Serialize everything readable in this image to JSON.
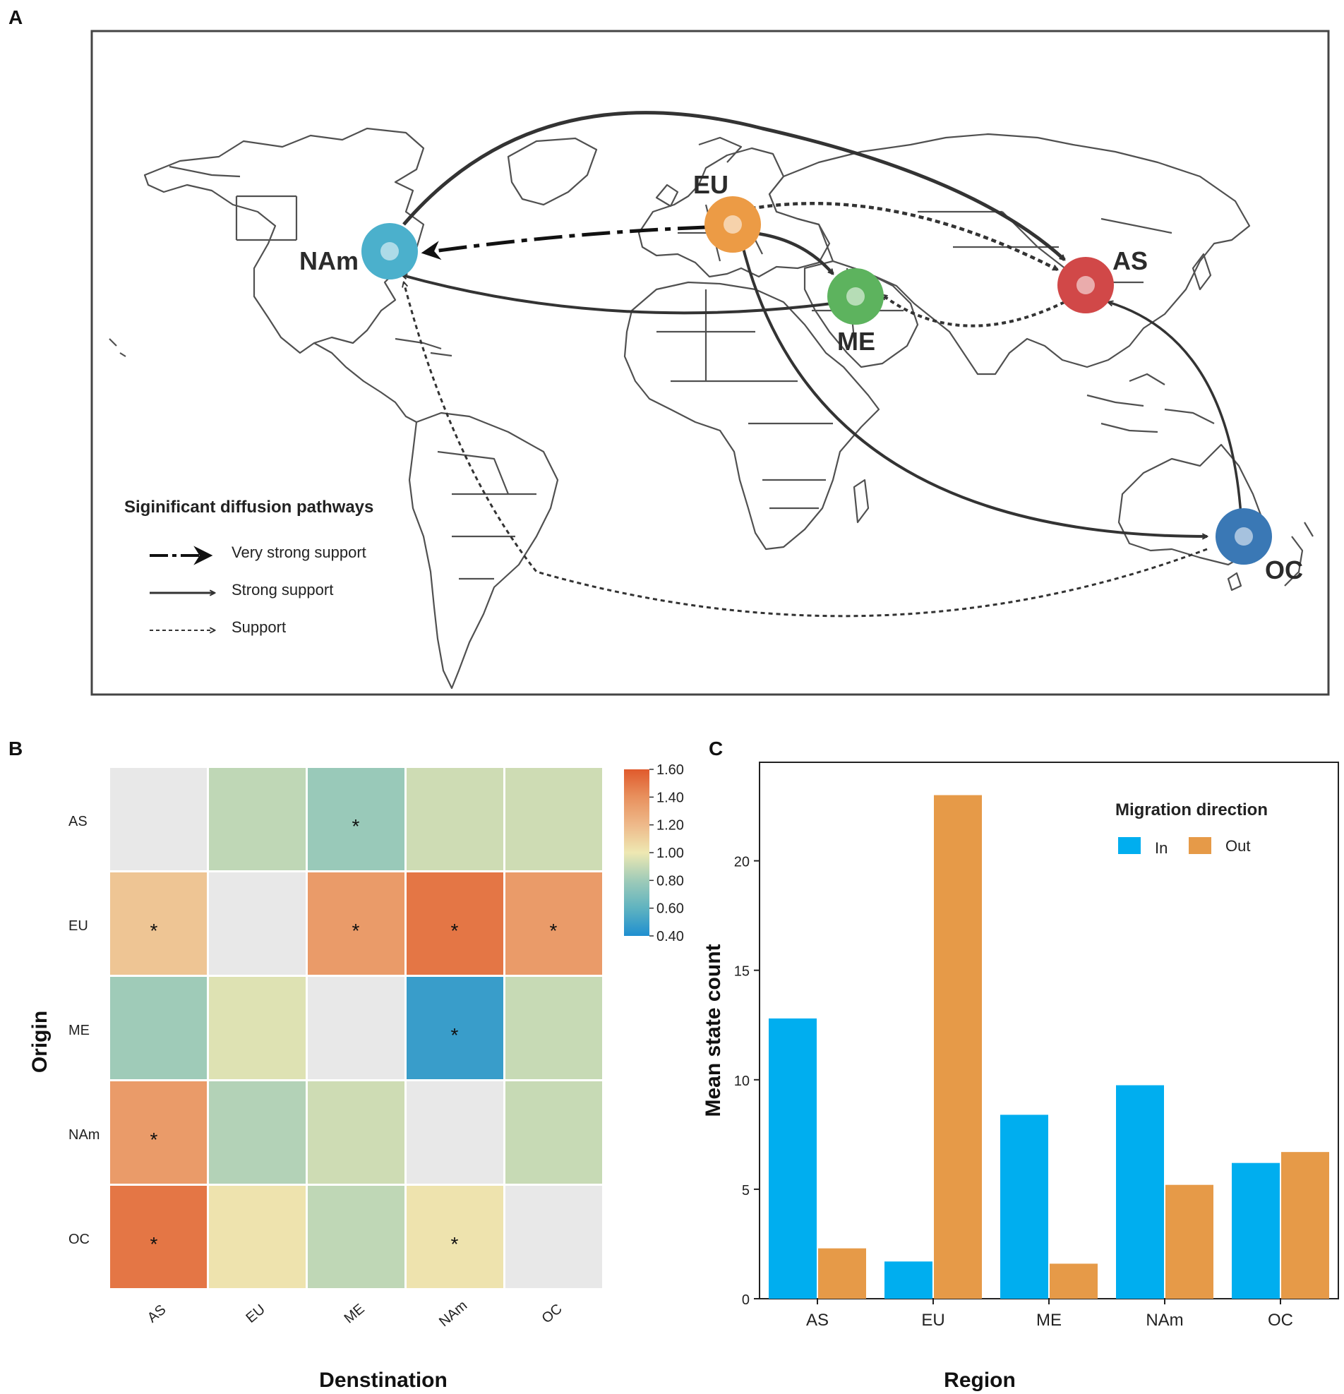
{
  "panels": {
    "a_label": "A",
    "b_label": "B",
    "c_label": "C"
  },
  "map": {
    "nodes": [
      {
        "id": "NAm",
        "label": "NAm",
        "color": "#4bb0cc"
      },
      {
        "id": "EU",
        "label": "EU",
        "color": "#ec9b45"
      },
      {
        "id": "ME",
        "label": "ME",
        "color": "#5db35e"
      },
      {
        "id": "AS",
        "label": "AS",
        "color": "#d14848"
      },
      {
        "id": "OC",
        "label": "OC",
        "color": "#3a78b5"
      }
    ],
    "pathways": [
      {
        "from": "EU",
        "to": "NAm",
        "support": "Very strong support"
      },
      {
        "from": "NAm",
        "to": "AS",
        "support": "Strong support"
      },
      {
        "from": "EU",
        "to": "ME",
        "support": "Strong support"
      },
      {
        "from": "ME",
        "to": "NAm",
        "support": "Strong support"
      },
      {
        "from": "EU",
        "to": "OC",
        "support": "Strong support"
      },
      {
        "from": "OC",
        "to": "AS",
        "support": "Strong support"
      },
      {
        "from": "EU",
        "to": "AS",
        "support": "Support"
      },
      {
        "from": "AS",
        "to": "ME",
        "support": "Support"
      },
      {
        "from": "OC",
        "to": "NAm",
        "support": "Support"
      }
    ],
    "legend": {
      "title": "Siginificant diffusion pathways",
      "items": [
        "Very strong support",
        "Strong support",
        "Support"
      ]
    }
  },
  "chart_data": [
    {
      "type": "heatmap",
      "title": "",
      "xlabel": "Denstination",
      "ylabel": "Origin",
      "x_categories": [
        "AS",
        "EU",
        "ME",
        "NAm",
        "OC"
      ],
      "y_categories": [
        "AS",
        "EU",
        "ME",
        "NAm",
        "OC"
      ],
      "values": [
        [
          null,
          0.88,
          0.78,
          0.92,
          0.92
        ],
        [
          1.15,
          null,
          1.35,
          1.5,
          1.35
        ],
        [
          0.8,
          0.96,
          null,
          0.48,
          0.9
        ],
        [
          1.35,
          0.85,
          0.92,
          null,
          0.9
        ],
        [
          1.5,
          1.02,
          0.88,
          1.02,
          null
        ]
      ],
      "significant": [
        [
          false,
          false,
          true,
          false,
          false
        ],
        [
          true,
          false,
          true,
          true,
          true
        ],
        [
          false,
          false,
          false,
          true,
          false
        ],
        [
          true,
          false,
          false,
          false,
          false
        ],
        [
          true,
          false,
          false,
          true,
          false
        ]
      ],
      "significance_marker": "*",
      "colorbar": {
        "min": 0.4,
        "max": 1.6,
        "ticks": [
          "0.40",
          "0.60",
          "0.80",
          "1.00",
          "1.20",
          "1.40",
          "1.60"
        ],
        "stops": [
          "#1f8fd0",
          "#5fb3c0",
          "#9fcbb8",
          "#eee8b2",
          "#eeb98a",
          "#e8915e",
          "#e05a2c"
        ],
        "diagonal_color": "#e8e8e8"
      }
    },
    {
      "type": "bar",
      "title": "",
      "xlabel": "Region",
      "ylabel": "Mean state count",
      "categories": [
        "AS",
        "EU",
        "ME",
        "NAm",
        "OC"
      ],
      "series": [
        {
          "name": "In",
          "color": "#00aeef",
          "values": [
            12.8,
            1.7,
            8.4,
            9.75,
            6.2
          ]
        },
        {
          "name": "Out",
          "color": "#e69a48",
          "values": [
            2.3,
            23.0,
            1.6,
            5.2,
            6.7
          ]
        }
      ],
      "ylim": [
        0,
        24.5
      ],
      "yticks": [
        0,
        5,
        10,
        15,
        20
      ],
      "legend_title": "Migration direction",
      "legend_position": "top-right"
    }
  ]
}
